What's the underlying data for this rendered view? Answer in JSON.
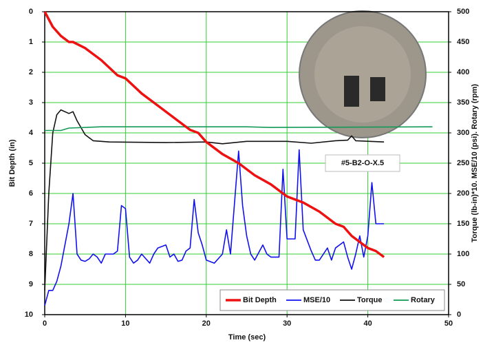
{
  "chart_data": {
    "type": "line",
    "x_label": "Time (sec)",
    "y_label": "Bit Depth (in)",
    "y2_label": "Torque (lb-in)*10. MSE/10 (psi). Rotary (rpm)",
    "annotation": "#5-B2-O-X.5",
    "xlim": [
      0,
      50
    ],
    "xticks": [
      0,
      10,
      20,
      30,
      40,
      50
    ],
    "ylim": [
      10,
      0
    ],
    "yticks": [
      0,
      1,
      2,
      3,
      4,
      5,
      6,
      7,
      8,
      9,
      10
    ],
    "y2lim": [
      0,
      500
    ],
    "y2ticks": [
      0,
      50,
      100,
      150,
      200,
      250,
      300,
      350,
      400,
      450,
      500
    ],
    "grid": true,
    "grid_color": "#33cc33",
    "legend": "lower right",
    "series": [
      {
        "name": "Bit Depth",
        "color": "#ee1111",
        "axis": "y",
        "x": [
          0,
          1,
          2,
          3,
          3.5,
          5,
          7,
          9,
          10,
          12,
          14,
          16,
          18,
          19,
          20,
          22,
          24,
          26,
          28,
          30,
          32,
          34,
          36,
          37,
          38,
          40,
          41,
          42
        ],
        "values": [
          0,
          0.5,
          0.8,
          1.0,
          1.0,
          1.2,
          1.6,
          2.1,
          2.2,
          2.7,
          3.1,
          3.5,
          3.9,
          4.0,
          4.3,
          4.7,
          5.0,
          5.4,
          5.7,
          6.1,
          6.3,
          6.6,
          7.0,
          7.1,
          7.4,
          7.8,
          7.9,
          8.1
        ]
      },
      {
        "name": "MSE/10",
        "color": "#1111ee",
        "axis": "y2",
        "x": [
          0,
          0.5,
          1,
          1.5,
          2,
          3,
          3.5,
          4,
          4.5,
          5,
          5.5,
          6,
          6.5,
          7,
          7.5,
          8,
          8.5,
          9,
          9.5,
          10,
          10.5,
          11,
          11.5,
          12,
          13,
          13.5,
          14,
          15,
          15.5,
          16,
          16.5,
          17,
          17.5,
          18,
          18.5,
          19,
          19.5,
          20,
          21,
          22,
          22.5,
          23,
          24,
          24.5,
          25,
          25.5,
          26,
          27,
          27.5,
          28,
          29,
          29.5,
          30,
          31,
          31.5,
          32,
          33,
          33.5,
          34,
          35,
          35.5,
          36,
          37,
          37.5,
          38,
          38.5,
          39,
          39.5,
          40,
          40.5,
          41,
          42
        ],
        "values": [
          15,
          40,
          40,
          55,
          80,
          150,
          200,
          100,
          90,
          88,
          92,
          100,
          95,
          85,
          100,
          100,
          100,
          105,
          180,
          175,
          95,
          85,
          90,
          100,
          85,
          100,
          110,
          115,
          95,
          100,
          88,
          90,
          105,
          110,
          190,
          135,
          115,
          90,
          85,
          100,
          140,
          100,
          270,
          180,
          130,
          100,
          90,
          115,
          100,
          95,
          95,
          240,
          125,
          125,
          272,
          140,
          105,
          90,
          90,
          110,
          90,
          110,
          120,
          95,
          75,
          100,
          130,
          95,
          130,
          218,
          150,
          150
        ]
      },
      {
        "name": "Torque",
        "color": "#111111",
        "axis": "y2",
        "x": [
          0,
          0.5,
          1,
          1.5,
          2,
          3,
          3.5,
          4,
          5,
          6,
          8,
          15,
          20,
          22,
          25,
          30,
          33,
          36,
          37.5,
          38,
          38.5,
          42
        ],
        "values": [
          40,
          200,
          300,
          330,
          338,
          332,
          335,
          320,
          297,
          287,
          285,
          284,
          285,
          282,
          286,
          286,
          283,
          287,
          288,
          295,
          287,
          285
        ]
      },
      {
        "name": "Rotary",
        "color": "#119955",
        "axis": "y2",
        "x": [
          0,
          2,
          3,
          7,
          25,
          28,
          48
        ],
        "values": [
          304,
          304,
          308,
          310,
          310,
          309,
          310
        ]
      }
    ]
  }
}
